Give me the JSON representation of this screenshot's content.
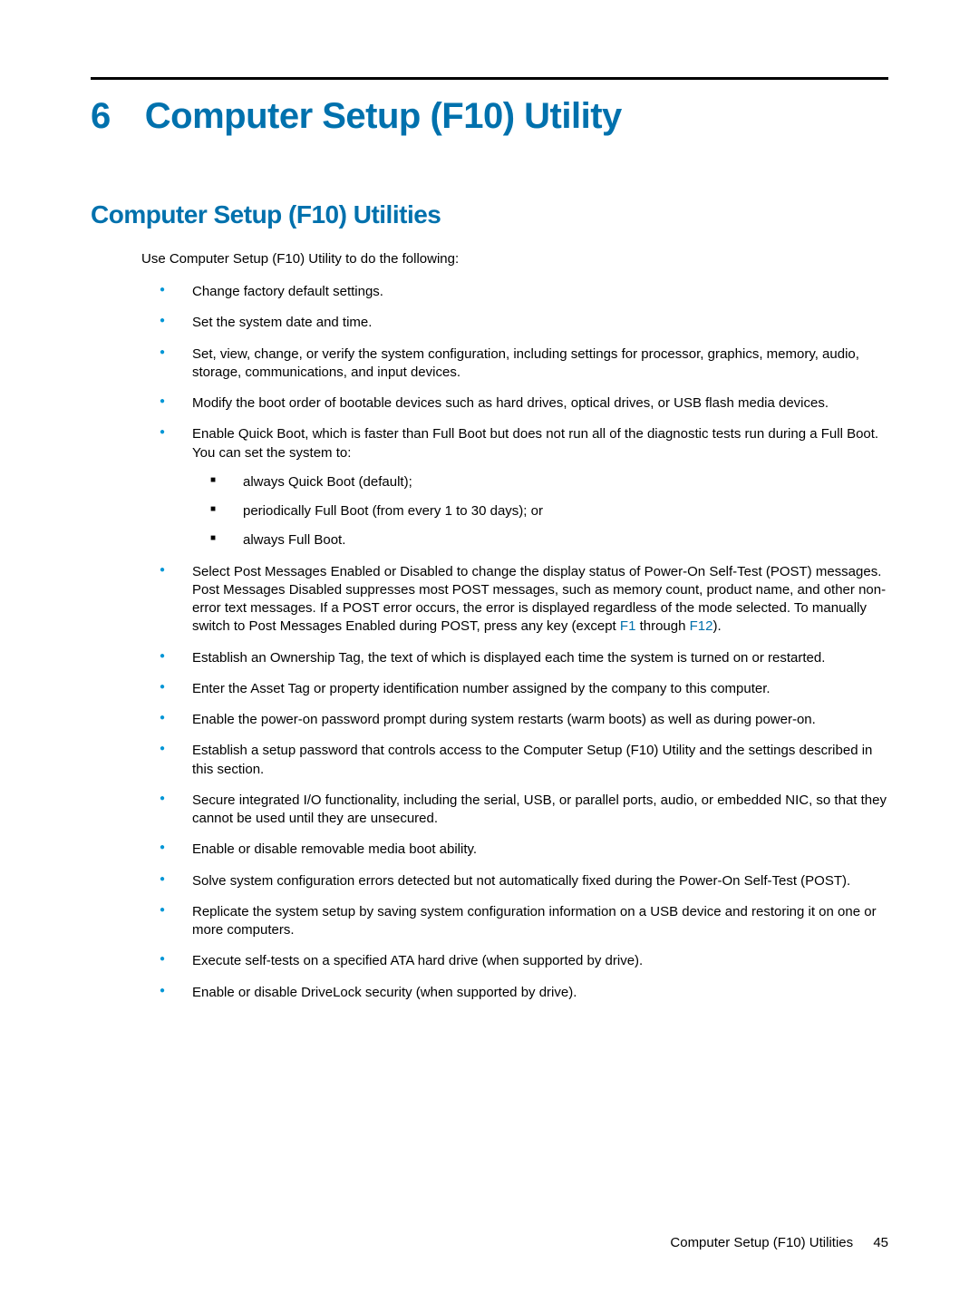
{
  "colors": {
    "heading": "#0071ad",
    "bullet": "#0096d6",
    "text": "#000000",
    "rule": "#000000",
    "background": "#ffffff"
  },
  "typography": {
    "chapter_fontsize": 40,
    "section_fontsize": 28,
    "body_fontsize": 15,
    "font_family": "Arial"
  },
  "chapter": {
    "number": "6",
    "title": "Computer Setup (F10) Utility"
  },
  "section": {
    "title": "Computer Setup (F10) Utilities",
    "intro": "Use Computer Setup (F10) Utility to do the following:"
  },
  "bullets": [
    {
      "text": "Change factory default settings."
    },
    {
      "text": "Set the system date and time."
    },
    {
      "text": "Set, view, change, or verify the system configuration, including settings for processor, graphics, memory, audio, storage, communications, and input devices."
    },
    {
      "text": "Modify the boot order of bootable devices such as hard drives, optical drives, or USB flash media devices."
    },
    {
      "text": "Enable Quick Boot, which is faster than Full Boot but does not run all of the diagnostic tests run during a Full Boot. You can set the system to:",
      "sub": [
        "always Quick Boot (default);",
        "periodically Full Boot (from every 1 to 30 days); or",
        "always Full Boot."
      ]
    },
    {
      "text_pre": "Select Post Messages Enabled or Disabled to change the display status of Power-On Self-Test (POST) messages. Post Messages Disabled suppresses most POST messages, such as memory count, product name, and other non-error text messages. If a POST error occurs, the error is displayed regardless of the mode selected. To manually switch to Post Messages Enabled during POST, press any key (except ",
      "key1": "F1",
      "mid": " through ",
      "key2": "F12",
      "text_post": ")."
    },
    {
      "text": "Establish an Ownership Tag, the text of which is displayed each time the system is turned on or restarted."
    },
    {
      "text": "Enter the Asset Tag or property identification number assigned by the company to this computer."
    },
    {
      "text": "Enable the power-on password prompt during system restarts (warm boots) as well as during power-on."
    },
    {
      "text": "Establish a setup password that controls access to the Computer Setup (F10) Utility and the settings described in this section."
    },
    {
      "text": "Secure integrated I/O functionality, including the serial, USB, or parallel ports, audio, or embedded NIC, so that they cannot be used until they are unsecured."
    },
    {
      "text": "Enable or disable removable media boot ability."
    },
    {
      "text": "Solve system configuration errors detected but not automatically fixed during the Power-On Self-Test (POST)."
    },
    {
      "text": "Replicate the system setup by saving system configuration information on a USB device and restoring it on one or more computers."
    },
    {
      "text": "Execute self-tests on a specified ATA hard drive (when supported by drive)."
    },
    {
      "text": "Enable or disable DriveLock security (when supported by drive)."
    }
  ],
  "footer": {
    "label": "Computer Setup (F10) Utilities",
    "page": "45"
  }
}
